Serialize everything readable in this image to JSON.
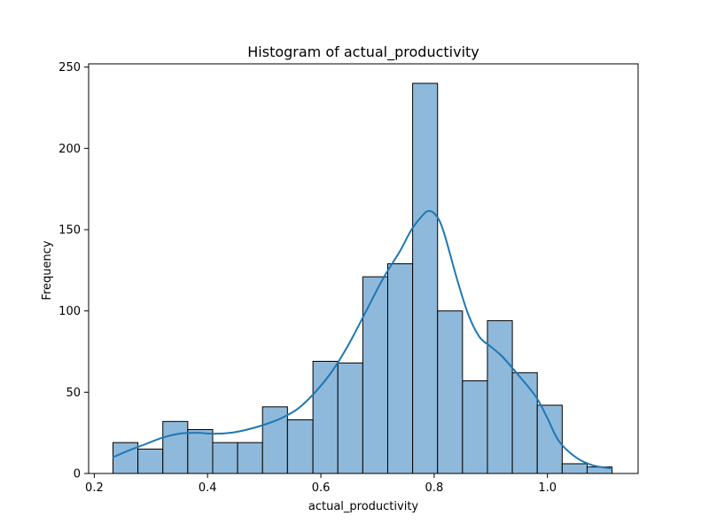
{
  "chart_data": {
    "type": "bar",
    "title": "Histogram of actual_productivity",
    "xlabel": "actual_productivity",
    "ylabel": "Frequency",
    "xlim": [
      0.19,
      1.16
    ],
    "ylim": [
      0,
      252
    ],
    "xticks": [
      0.2,
      0.4,
      0.6,
      0.8,
      1.0
    ],
    "xtick_labels": [
      "0.2",
      "0.4",
      "0.6",
      "0.8",
      "1.0"
    ],
    "yticks": [
      0,
      50,
      100,
      150,
      200,
      250
    ],
    "ytick_labels": [
      "0",
      "50",
      "100",
      "150",
      "200",
      "250"
    ],
    "bins": [
      {
        "x0": 0.233,
        "x1": 0.277,
        "count": 19
      },
      {
        "x0": 0.277,
        "x1": 0.321,
        "count": 15
      },
      {
        "x0": 0.321,
        "x1": 0.365,
        "count": 32
      },
      {
        "x0": 0.365,
        "x1": 0.409,
        "count": 27
      },
      {
        "x0": 0.409,
        "x1": 0.453,
        "count": 19
      },
      {
        "x0": 0.453,
        "x1": 0.497,
        "count": 19
      },
      {
        "x0": 0.497,
        "x1": 0.541,
        "count": 41
      },
      {
        "x0": 0.541,
        "x1": 0.586,
        "count": 33
      },
      {
        "x0": 0.586,
        "x1": 0.63,
        "count": 69
      },
      {
        "x0": 0.63,
        "x1": 0.674,
        "count": 68
      },
      {
        "x0": 0.674,
        "x1": 0.718,
        "count": 121
      },
      {
        "x0": 0.718,
        "x1": 0.762,
        "count": 129
      },
      {
        "x0": 0.762,
        "x1": 0.806,
        "count": 240
      },
      {
        "x0": 0.806,
        "x1": 0.85,
        "count": 100
      },
      {
        "x0": 0.85,
        "x1": 0.894,
        "count": 57
      },
      {
        "x0": 0.894,
        "x1": 0.938,
        "count": 94
      },
      {
        "x0": 0.938,
        "x1": 0.982,
        "count": 62
      },
      {
        "x0": 0.982,
        "x1": 1.026,
        "count": 42
      },
      {
        "x0": 1.026,
        "x1": 1.07,
        "count": 6
      },
      {
        "x0": 1.07,
        "x1": 1.114,
        "count": 4
      }
    ],
    "kde": {
      "x": [
        0.233,
        0.26,
        0.29,
        0.32,
        0.35,
        0.38,
        0.41,
        0.44,
        0.47,
        0.5,
        0.53,
        0.56,
        0.59,
        0.62,
        0.65,
        0.68,
        0.71,
        0.74,
        0.76,
        0.78,
        0.79,
        0.8,
        0.81,
        0.82,
        0.84,
        0.86,
        0.88,
        0.9,
        0.92,
        0.95,
        0.98,
        1.0,
        1.02,
        1.05,
        1.08,
        1.114
      ],
      "y": [
        10,
        14,
        18,
        22,
        24.5,
        25,
        24.5,
        25,
        27,
        30,
        34,
        40,
        50,
        63,
        80,
        100,
        120,
        137,
        150,
        159,
        161.5,
        160,
        155,
        145,
        120,
        98,
        84,
        78,
        72,
        60,
        47,
        34,
        20,
        10,
        5,
        3
      ]
    },
    "bar_color": "#8fb9db",
    "bar_edge_color": "#000000",
    "kde_color": "#1f77b4",
    "grid": false,
    "legend": "none"
  }
}
